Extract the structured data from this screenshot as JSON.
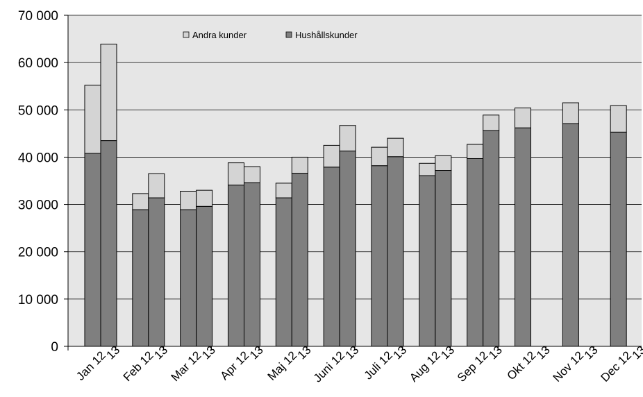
{
  "chart_data": {
    "type": "bar",
    "stacked": true,
    "months": [
      "Jan",
      "Feb",
      "Mar",
      "Apr",
      "Maj",
      "Juni",
      "Juli",
      "Aug",
      "Sep",
      "Okt",
      "Nov",
      "Dec"
    ],
    "years": [
      "12",
      "13"
    ],
    "series": [
      {
        "name": "Hushållskunder",
        "color": "#7f7f7f",
        "values": {
          "12": [
            40800,
            28900,
            28900,
            34100,
            31400,
            37900,
            38200,
            36100,
            39700,
            46200,
            47100,
            45300
          ],
          "13": [
            43500,
            31400,
            29600,
            34600,
            36600,
            41300,
            40100,
            37200,
            45600,
            null,
            null,
            null
          ]
        }
      },
      {
        "name": "Andra kunder",
        "color": "#d4d4d4",
        "values": {
          "12": [
            14400,
            3400,
            3900,
            4700,
            3100,
            4600,
            3900,
            2600,
            3000,
            4200,
            4400,
            5600
          ],
          "13": [
            20400,
            5100,
            3400,
            3400,
            3400,
            5400,
            3900,
            3100,
            3300,
            null,
            null,
            null
          ]
        }
      }
    ],
    "ylim": [
      0,
      70000
    ],
    "yticks": [
      0,
      10000,
      20000,
      30000,
      40000,
      50000,
      60000,
      70000
    ],
    "ytick_labels": [
      "0",
      "10 000",
      "20 000",
      "30 000",
      "40 000",
      "50 000",
      "60 000",
      "70 000"
    ],
    "grid": true,
    "legend_placement": "top-left",
    "plot_background": "#e6e6e6"
  }
}
